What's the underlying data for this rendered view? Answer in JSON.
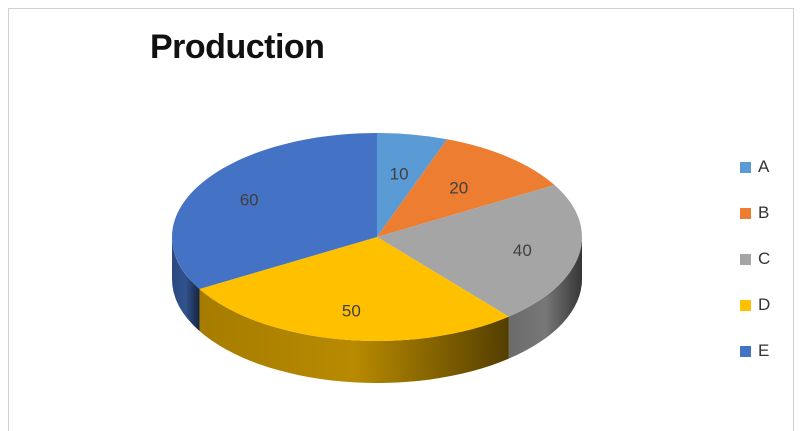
{
  "chart_data": {
    "type": "pie",
    "title": "Production",
    "categories": [
      "A",
      "B",
      "C",
      "D",
      "E"
    ],
    "values": [
      10,
      20,
      40,
      50,
      60
    ],
    "colors": [
      "#5b9bd5",
      "#ed7d31",
      "#a5a5a5",
      "#ffc000",
      "#4472c4"
    ],
    "style": "3d-pie",
    "legend_position": "right"
  }
}
